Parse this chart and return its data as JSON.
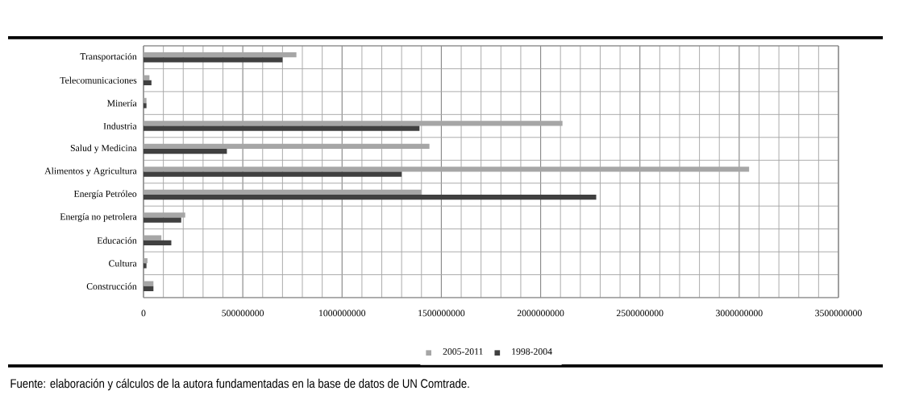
{
  "chart_data": {
    "type": "bar",
    "orientation": "horizontal",
    "categories": [
      "Transportación",
      "Telecomunicaciones",
      "Minería",
      "Industria",
      "Salud y Medicina",
      "Alimentos y Agricultura",
      "Energía Petróleo",
      "Energía no petrolera",
      "Educación",
      "Cultura",
      "Construcción"
    ],
    "series": [
      {
        "name": "2005-2011",
        "color": "#a6a6a6",
        "values": [
          770000000,
          30000000,
          15000000,
          2110000000,
          1440000000,
          3050000000,
          1400000000,
          210000000,
          90000000,
          20000000,
          50000000
        ]
      },
      {
        "name": "1998-2004",
        "color": "#404040",
        "values": [
          700000000,
          40000000,
          15000000,
          1390000000,
          420000000,
          1300000000,
          2280000000,
          190000000,
          140000000,
          15000000,
          50000000
        ]
      }
    ],
    "xlim": [
      0,
      3500000000
    ],
    "xticks": [
      0,
      500000000,
      1000000000,
      1500000000,
      2000000000,
      2500000000,
      3000000000,
      3500000000
    ],
    "grid": true,
    "legend": "bottom",
    "annotations": [
      "Fuente: elaboración y cálculos de la autora fundamentadas en la base de datos de UN Comtrade."
    ]
  }
}
